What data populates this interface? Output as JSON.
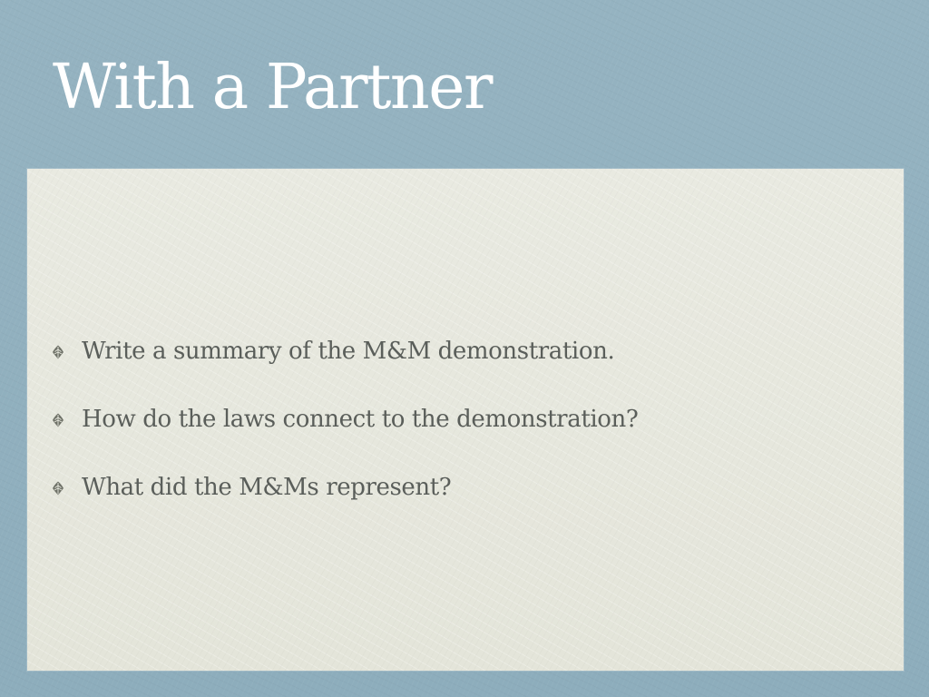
{
  "slide": {
    "title": "With a Partner",
    "bullet_icon": "leaf-bullet-icon",
    "bullets": [
      "Write a summary of the M&M demonstration.",
      "How do the laws connect to the demonstration?",
      "What did the M&Ms represent?"
    ]
  },
  "colors": {
    "background": "#8fafbe",
    "panel": "#e7e8de",
    "title_text": "#ffffff",
    "body_text": "#5a5e5a"
  }
}
